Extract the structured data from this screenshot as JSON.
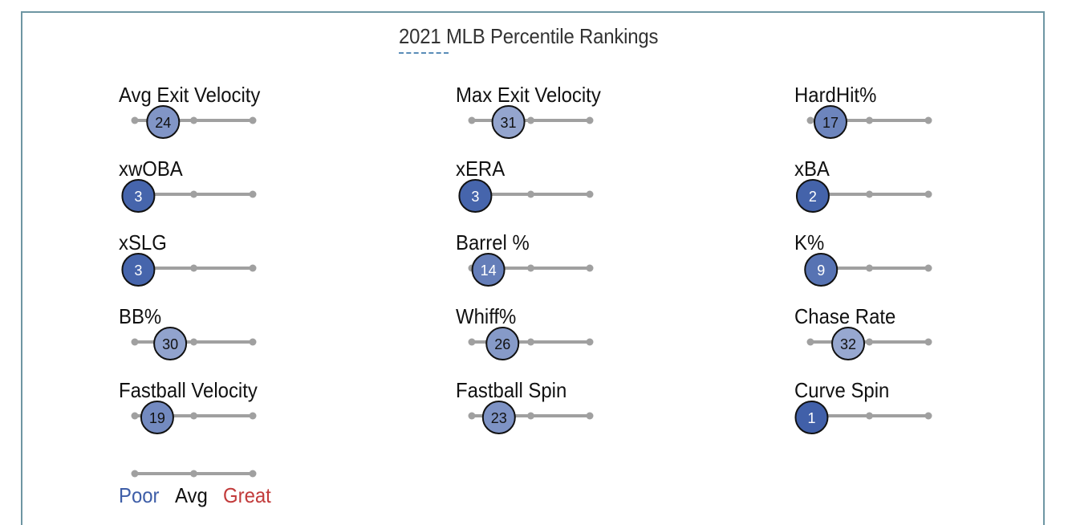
{
  "title": "2021 MLB Percentile Rankings",
  "chart_data": {
    "type": "scatter",
    "title": "2021 MLB Percentile Rankings",
    "xlim": [
      0,
      100
    ],
    "metrics": [
      {
        "label": "Avg Exit Velocity",
        "value": 24
      },
      {
        "label": "Max Exit Velocity",
        "value": 31
      },
      {
        "label": "HardHit%",
        "value": 17
      },
      {
        "label": "xwOBA",
        "value": 3
      },
      {
        "label": "xERA",
        "value": 3
      },
      {
        "label": "xBA",
        "value": 2
      },
      {
        "label": "xSLG",
        "value": 3
      },
      {
        "label": "Barrel %",
        "value": 14
      },
      {
        "label": "K%",
        "value": 9
      },
      {
        "label": "BB%",
        "value": 30
      },
      {
        "label": "Whiff%",
        "value": 26
      },
      {
        "label": "Chase Rate",
        "value": 32
      },
      {
        "label": "Fastball Velocity",
        "value": 19
      },
      {
        "label": "Fastball Spin",
        "value": 23
      },
      {
        "label": "Curve Spin",
        "value": 1
      }
    ],
    "legend": {
      "poor": "Poor",
      "avg": "Avg",
      "great": "Great"
    },
    "colors": {
      "poor": "#3e5ea8",
      "great": "#c23b3b",
      "avg_text": "#111111",
      "track": "#a0a0a0"
    }
  }
}
